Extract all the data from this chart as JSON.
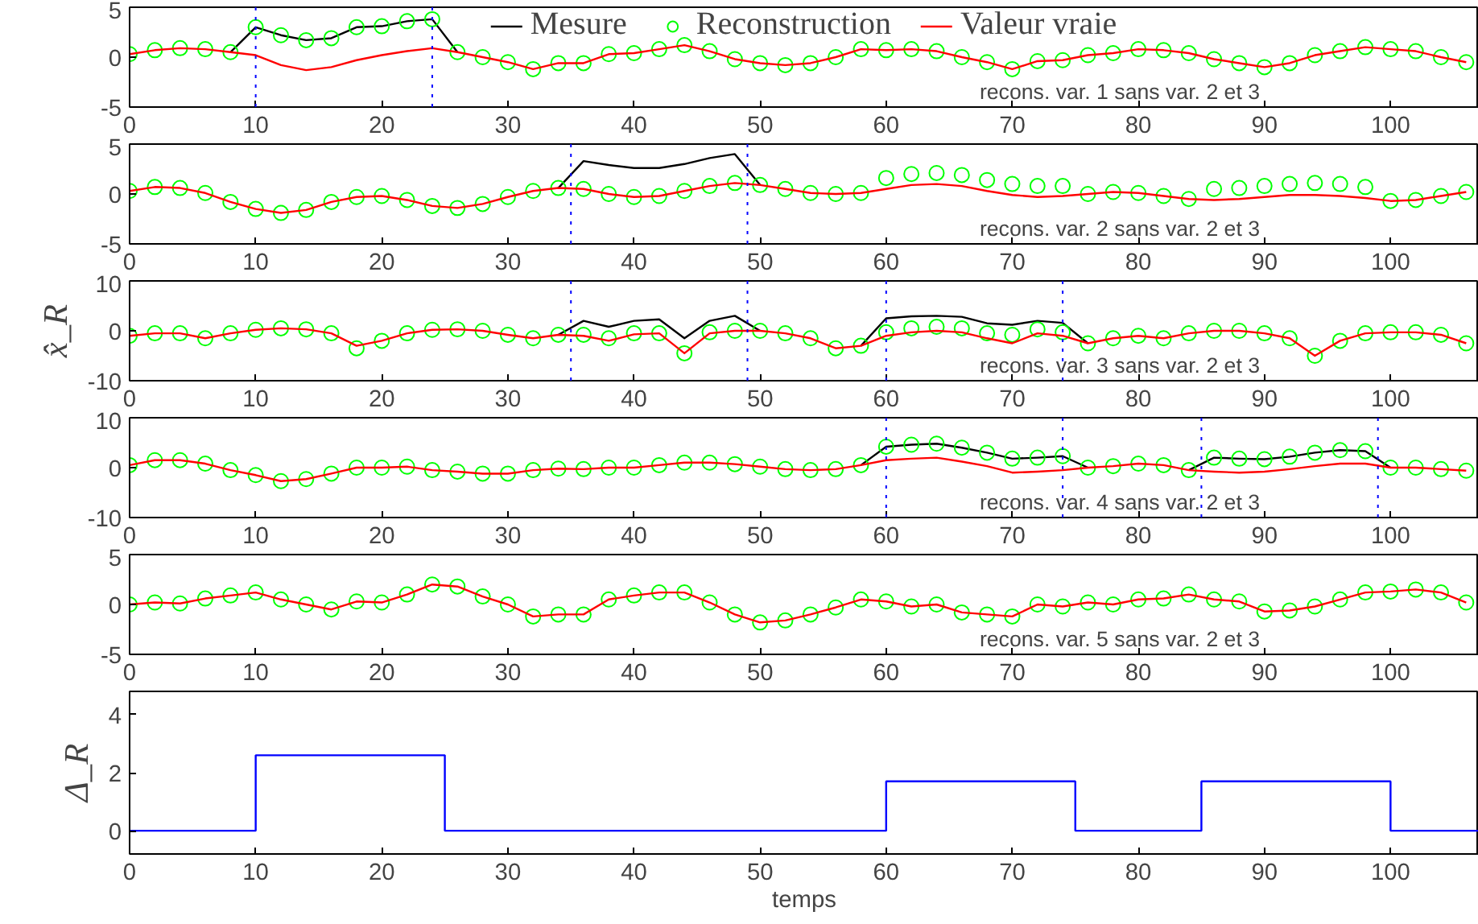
{
  "chart_data": [
    {
      "type": "line",
      "x": [
        0,
        2,
        4,
        6,
        8,
        10,
        12,
        14,
        16,
        18,
        20,
        22,
        24,
        26,
        28,
        30,
        32,
        34,
        36,
        38,
        40,
        42,
        44,
        46,
        48,
        50,
        52,
        54,
        56,
        58,
        60,
        62,
        64,
        66,
        68,
        70,
        72,
        74,
        76,
        78,
        80,
        82,
        84,
        86,
        88,
        90,
        92,
        94,
        96,
        98,
        100,
        102,
        104,
        106
      ],
      "xlim": [
        0,
        107
      ],
      "xticks": [
        0,
        10,
        20,
        30,
        40,
        50,
        60,
        70,
        80,
        90,
        100
      ],
      "ylim": [
        -5,
        5
      ],
      "yticks": [
        -5,
        0,
        5
      ],
      "legend": "top",
      "annotations": [
        "recons. var.  1  sans var. 2 et 3"
      ],
      "ref_lines": [
        {
          "axis": "x",
          "value": 10,
          "color": "#0000ff",
          "line_style": "dotted"
        },
        {
          "axis": "x",
          "value": 24,
          "color": "#0000ff",
          "line_style": "dotted"
        }
      ],
      "series": [
        {
          "name": "Mesure",
          "type": "line",
          "color": "#000000",
          "values": [
            null,
            null,
            null,
            null,
            0.5,
            3.0,
            2.2,
            1.7,
            1.9,
            3.0,
            3.1,
            3.6,
            3.8,
            0.5,
            null,
            null,
            null,
            null,
            null,
            null,
            null,
            null,
            null,
            null,
            null,
            null,
            null,
            null,
            null,
            null,
            null,
            null,
            null,
            null,
            null,
            null,
            null,
            null,
            null,
            null,
            null,
            null,
            null,
            null,
            null,
            null,
            null,
            null,
            null,
            null,
            null,
            null,
            null,
            null
          ]
        },
        {
          "name": "Reconstruction",
          "type": "scatter",
          "marker": "circle",
          "color": "#00ff00",
          "values": [
            0.3,
            0.7,
            0.9,
            0.8,
            0.5,
            3.0,
            2.2,
            1.7,
            1.9,
            3.0,
            3.1,
            3.6,
            3.8,
            0.5,
            0.0,
            -0.5,
            -1.2,
            -0.6,
            -0.6,
            0.3,
            0.4,
            0.8,
            1.2,
            0.6,
            -0.2,
            -0.6,
            -0.8,
            -0.6,
            0.0,
            0.8,
            0.7,
            0.8,
            0.6,
            0.0,
            -0.5,
            -1.2,
            -0.4,
            -0.3,
            0.2,
            0.4,
            0.8,
            0.7,
            0.4,
            -0.2,
            -0.6,
            -1.0,
            -0.6,
            0.2,
            0.6,
            1.0,
            0.8,
            0.6,
            0.0,
            -0.5
          ]
        },
        {
          "name": "Valeur vraie",
          "type": "line",
          "color": "#ff0000",
          "values": [
            0.3,
            0.7,
            0.9,
            0.8,
            0.5,
            0.2,
            -0.8,
            -1.3,
            -1.0,
            -0.3,
            0.2,
            0.6,
            0.9,
            0.5,
            0.0,
            -0.5,
            -1.2,
            -0.6,
            -0.6,
            0.3,
            0.4,
            0.8,
            1.2,
            0.6,
            -0.2,
            -0.6,
            -0.8,
            -0.6,
            0.0,
            0.8,
            0.7,
            0.8,
            0.6,
            0.0,
            -0.5,
            -1.2,
            -0.4,
            -0.3,
            0.2,
            0.4,
            0.8,
            0.7,
            0.4,
            -0.2,
            -0.6,
            -1.0,
            -0.6,
            0.2,
            0.6,
            1.0,
            0.8,
            0.6,
            0.0,
            -0.5
          ]
        }
      ]
    },
    {
      "type": "line",
      "x": [
        0,
        2,
        4,
        6,
        8,
        10,
        12,
        14,
        16,
        18,
        20,
        22,
        24,
        26,
        28,
        30,
        32,
        34,
        36,
        38,
        40,
        42,
        44,
        46,
        48,
        50,
        52,
        54,
        56,
        58,
        60,
        62,
        64,
        66,
        68,
        70,
        72,
        74,
        76,
        78,
        80,
        82,
        84,
        86,
        88,
        90,
        92,
        94,
        96,
        98,
        100,
        102,
        104,
        106
      ],
      "xlim": [
        0,
        107
      ],
      "xticks": [
        0,
        10,
        20,
        30,
        40,
        50,
        60,
        70,
        80,
        90,
        100
      ],
      "ylim": [
        -5,
        5
      ],
      "yticks": [
        -5,
        0,
        5
      ],
      "annotations": [
        "recons. var.  2  sans var. 2 et 3"
      ],
      "ref_lines": [
        {
          "axis": "x",
          "value": 35,
          "color": "#0000ff",
          "line_style": "dotted"
        },
        {
          "axis": "x",
          "value": 49,
          "color": "#0000ff",
          "line_style": "dotted"
        }
      ],
      "series": [
        {
          "type": "line",
          "color": "#000000",
          "values": [
            null,
            null,
            null,
            null,
            null,
            null,
            null,
            null,
            null,
            null,
            null,
            null,
            null,
            null,
            null,
            null,
            null,
            0.6,
            3.3,
            2.9,
            2.6,
            2.6,
            3.0,
            3.6,
            4.0,
            0.9,
            null,
            null,
            null,
            null,
            null,
            null,
            null,
            null,
            null,
            null,
            null,
            null,
            null,
            null,
            null,
            null,
            null,
            null,
            null,
            null,
            null,
            null,
            null,
            null,
            null,
            null,
            null,
            null
          ]
        },
        {
          "type": "scatter",
          "marker": "circle",
          "color": "#00ff00",
          "values": [
            0.3,
            0.7,
            0.6,
            0.1,
            -0.8,
            -1.5,
            -1.9,
            -1.6,
            -0.8,
            -0.3,
            -0.2,
            -0.6,
            -1.2,
            -1.4,
            -1.0,
            -0.3,
            0.3,
            0.6,
            0.5,
            0.0,
            -0.3,
            -0.2,
            0.3,
            0.8,
            1.1,
            0.9,
            0.5,
            0.1,
            0.0,
            0.1,
            1.6,
            2.0,
            2.1,
            1.9,
            1.4,
            1.0,
            0.8,
            0.8,
            0.0,
            0.2,
            0.1,
            -0.2,
            -0.5,
            0.5,
            0.6,
            0.8,
            1.0,
            1.1,
            1.0,
            0.7,
            -0.7,
            -0.6,
            -0.2,
            0.2
          ]
        },
        {
          "type": "line",
          "color": "#ff0000",
          "values": [
            0.3,
            0.7,
            0.6,
            0.1,
            -0.8,
            -1.5,
            -1.9,
            -1.6,
            -0.8,
            -0.3,
            -0.2,
            -0.6,
            -1.2,
            -1.4,
            -1.0,
            -0.3,
            0.3,
            0.6,
            0.5,
            0.0,
            -0.3,
            -0.2,
            0.3,
            0.8,
            1.1,
            0.9,
            0.5,
            0.1,
            0.0,
            0.1,
            0.5,
            0.9,
            1.0,
            0.8,
            0.3,
            -0.1,
            -0.3,
            -0.2,
            0.0,
            0.2,
            0.1,
            -0.2,
            -0.5,
            -0.6,
            -0.5,
            -0.3,
            -0.1,
            -0.1,
            -0.2,
            -0.4,
            -0.7,
            -0.6,
            -0.2,
            0.2
          ]
        }
      ]
    },
    {
      "type": "line",
      "x": [
        0,
        2,
        4,
        6,
        8,
        10,
        12,
        14,
        16,
        18,
        20,
        22,
        24,
        26,
        28,
        30,
        32,
        34,
        36,
        38,
        40,
        42,
        44,
        46,
        48,
        50,
        52,
        54,
        56,
        58,
        60,
        62,
        64,
        66,
        68,
        70,
        72,
        74,
        76,
        78,
        80,
        82,
        84,
        86,
        88,
        90,
        92,
        94,
        96,
        98,
        100,
        102,
        104,
        106
      ],
      "xlim": [
        0,
        107
      ],
      "xticks": [
        0,
        10,
        20,
        30,
        40,
        50,
        60,
        70,
        80,
        90,
        100
      ],
      "ylim": [
        -10,
        10
      ],
      "yticks": [
        -10,
        0,
        10
      ],
      "ylabel": "x̂_R",
      "annotations": [
        "recons. var.  3  sans var. 2 et 3"
      ],
      "ref_lines": [
        {
          "axis": "x",
          "value": 35,
          "color": "#0000ff",
          "line_style": "dotted"
        },
        {
          "axis": "x",
          "value": 49,
          "color": "#0000ff",
          "line_style": "dotted"
        },
        {
          "axis": "x",
          "value": 60,
          "color": "#0000ff",
          "line_style": "dotted"
        },
        {
          "axis": "x",
          "value": 74,
          "color": "#0000ff",
          "line_style": "dotted"
        }
      ],
      "series": [
        {
          "type": "line",
          "color": "#000000",
          "values": [
            null,
            null,
            null,
            null,
            null,
            null,
            null,
            null,
            null,
            null,
            null,
            null,
            null,
            null,
            null,
            null,
            null,
            -0.8,
            2.0,
            0.8,
            2.0,
            2.3,
            -1.5,
            2.0,
            3.0,
            0.0,
            null,
            null,
            null,
            -3.0,
            2.5,
            2.9,
            3.0,
            2.8,
            1.5,
            1.2,
            2.0,
            1.6,
            -2.5,
            null,
            null,
            null,
            null,
            null,
            null,
            null,
            null,
            null,
            null,
            null,
            null,
            null,
            null,
            null
          ]
        },
        {
          "type": "scatter",
          "marker": "circle",
          "color": "#00ff00",
          "values": [
            -1.0,
            -0.5,
            -0.5,
            -1.5,
            -0.5,
            0.2,
            0.5,
            0.3,
            -0.5,
            -3.5,
            -2.0,
            -0.5,
            0.2,
            0.3,
            0.0,
            -0.8,
            -1.5,
            -0.8,
            -0.8,
            -1.5,
            -0.5,
            -0.5,
            -4.5,
            -0.3,
            0.0,
            0.0,
            -0.5,
            -1.5,
            -3.5,
            -3.0,
            -0.3,
            0.5,
            0.8,
            0.5,
            -0.5,
            -0.8,
            0.3,
            -0.3,
            -2.5,
            -1.5,
            -1.0,
            -1.5,
            -0.5,
            0.0,
            0.0,
            -0.5,
            -1.5,
            -5.0,
            -2.0,
            -0.5,
            -0.3,
            -0.3,
            -0.8,
            -2.5
          ]
        },
        {
          "type": "line",
          "color": "#ff0000",
          "values": [
            -1.0,
            -0.5,
            -0.5,
            -1.5,
            -0.5,
            0.2,
            0.5,
            0.3,
            -0.5,
            -3.0,
            -2.0,
            -0.5,
            0.2,
            0.3,
            0.0,
            -0.8,
            -1.5,
            -0.8,
            -1.0,
            -2.0,
            -0.7,
            -0.5,
            -4.5,
            -0.5,
            0.0,
            0.0,
            -0.5,
            -1.5,
            -3.5,
            -3.0,
            -1.0,
            -0.3,
            0.0,
            -0.3,
            -1.5,
            -2.5,
            -0.5,
            -1.0,
            -2.5,
            -1.5,
            -1.0,
            -1.5,
            -0.5,
            0.0,
            0.0,
            -0.5,
            -1.5,
            -5.0,
            -2.0,
            -0.5,
            -0.3,
            -0.3,
            -0.8,
            -2.5
          ]
        }
      ]
    },
    {
      "type": "line",
      "x": [
        0,
        2,
        4,
        6,
        8,
        10,
        12,
        14,
        16,
        18,
        20,
        22,
        24,
        26,
        28,
        30,
        32,
        34,
        36,
        38,
        40,
        42,
        44,
        46,
        48,
        50,
        52,
        54,
        56,
        58,
        60,
        62,
        64,
        66,
        68,
        70,
        72,
        74,
        76,
        78,
        80,
        82,
        84,
        86,
        88,
        90,
        92,
        94,
        96,
        98,
        100,
        102,
        104,
        106
      ],
      "xlim": [
        0,
        107
      ],
      "xticks": [
        0,
        10,
        20,
        30,
        40,
        50,
        60,
        70,
        80,
        90,
        100
      ],
      "ylim": [
        -10,
        10
      ],
      "yticks": [
        -10,
        0,
        10
      ],
      "annotations": [
        "recons. var.  4  sans var. 2 et 3"
      ],
      "ref_lines": [
        {
          "axis": "x",
          "value": 60,
          "color": "#0000ff",
          "line_style": "dotted"
        },
        {
          "axis": "x",
          "value": 74,
          "color": "#0000ff",
          "line_style": "dotted"
        },
        {
          "axis": "x",
          "value": 85,
          "color": "#0000ff",
          "line_style": "dotted"
        },
        {
          "axis": "x",
          "value": 99,
          "color": "#0000ff",
          "line_style": "dotted"
        }
      ],
      "series": [
        {
          "type": "line",
          "color": "#000000",
          "values": [
            null,
            null,
            null,
            null,
            null,
            null,
            null,
            null,
            null,
            null,
            null,
            null,
            null,
            null,
            null,
            null,
            null,
            null,
            null,
            null,
            null,
            null,
            null,
            null,
            null,
            null,
            null,
            null,
            null,
            0.5,
            4.2,
            4.6,
            4.8,
            4.0,
            3.0,
            1.8,
            2.0,
            2.3,
            0.0,
            null,
            null,
            null,
            -0.5,
            2.0,
            1.8,
            1.7,
            2.2,
            3.0,
            3.5,
            3.3,
            0.0,
            null,
            null,
            null
          ]
        },
        {
          "type": "scatter",
          "marker": "circle",
          "color": "#00ff00",
          "values": [
            0.5,
            1.5,
            1.5,
            0.8,
            -0.5,
            -1.5,
            -2.7,
            -2.3,
            -1.2,
            0.0,
            0.0,
            0.2,
            -0.5,
            -0.8,
            -1.2,
            -1.2,
            -0.5,
            -0.2,
            -0.3,
            0.0,
            0.0,
            0.5,
            1.0,
            1.0,
            0.7,
            0.2,
            -0.3,
            -0.5,
            -0.3,
            0.5,
            4.2,
            4.6,
            4.8,
            4.0,
            3.0,
            1.8,
            2.0,
            2.3,
            0.0,
            0.3,
            0.8,
            0.5,
            -0.5,
            2.0,
            1.8,
            1.7,
            2.2,
            3.0,
            3.5,
            3.3,
            0.0,
            0.0,
            -0.3,
            -0.6
          ]
        },
        {
          "type": "line",
          "color": "#ff0000",
          "values": [
            0.5,
            1.5,
            1.5,
            0.8,
            -0.5,
            -1.5,
            -2.7,
            -2.3,
            -1.2,
            0.0,
            0.0,
            0.2,
            -0.5,
            -0.8,
            -1.2,
            -1.2,
            -0.5,
            -0.2,
            -0.3,
            0.0,
            0.0,
            0.5,
            1.0,
            1.0,
            0.7,
            0.2,
            -0.3,
            -0.5,
            -0.3,
            0.5,
            1.5,
            1.8,
            2.0,
            1.2,
            0.3,
            -1.0,
            -0.8,
            -0.5,
            0.0,
            0.3,
            0.8,
            0.5,
            -0.5,
            -0.8,
            -1.0,
            -0.8,
            -0.3,
            0.3,
            0.8,
            0.8,
            0.0,
            0.0,
            -0.3,
            -0.6
          ]
        }
      ]
    },
    {
      "type": "line",
      "x": [
        0,
        2,
        4,
        6,
        8,
        10,
        12,
        14,
        16,
        18,
        20,
        22,
        24,
        26,
        28,
        30,
        32,
        34,
        36,
        38,
        40,
        42,
        44,
        46,
        48,
        50,
        52,
        54,
        56,
        58,
        60,
        62,
        64,
        66,
        68,
        70,
        72,
        74,
        76,
        78,
        80,
        82,
        84,
        86,
        88,
        90,
        92,
        94,
        96,
        98,
        100,
        102,
        104,
        106
      ],
      "xlim": [
        0,
        107
      ],
      "xticks": [
        0,
        10,
        20,
        30,
        40,
        50,
        60,
        70,
        80,
        90,
        100
      ],
      "ylim": [
        -5,
        5
      ],
      "yticks": [
        -5,
        0,
        5
      ],
      "annotations": [
        "recons. var.  5  sans var. 2 et 3"
      ],
      "series": [
        {
          "type": "scatter",
          "marker": "circle",
          "color": "#00ff00",
          "values": [
            0.0,
            0.2,
            0.1,
            0.6,
            0.9,
            1.2,
            0.5,
            0.0,
            -0.5,
            0.3,
            0.2,
            1.0,
            2.0,
            1.8,
            0.8,
            0.0,
            -1.2,
            -1.0,
            -1.0,
            0.5,
            0.9,
            1.2,
            1.2,
            0.2,
            -1.0,
            -1.8,
            -1.6,
            -1.0,
            -0.3,
            0.5,
            0.3,
            -0.2,
            0.0,
            -0.8,
            -1.0,
            -1.2,
            0.0,
            -0.2,
            0.2,
            0.0,
            0.5,
            0.6,
            1.0,
            0.5,
            0.3,
            -0.7,
            -0.6,
            -0.2,
            0.5,
            1.2,
            1.3,
            1.5,
            1.2,
            0.2
          ]
        },
        {
          "type": "line",
          "color": "#ff0000",
          "values": [
            0.0,
            0.2,
            0.1,
            0.6,
            0.9,
            1.2,
            0.5,
            0.0,
            -0.5,
            0.3,
            0.2,
            1.0,
            2.0,
            1.8,
            0.8,
            0.0,
            -1.2,
            -1.0,
            -1.0,
            0.5,
            0.9,
            1.2,
            1.2,
            0.2,
            -1.0,
            -1.8,
            -1.6,
            -1.0,
            -0.3,
            0.5,
            0.3,
            -0.2,
            0.0,
            -0.8,
            -1.0,
            -1.2,
            0.0,
            -0.2,
            0.2,
            0.0,
            0.5,
            0.6,
            1.0,
            0.5,
            0.3,
            -0.7,
            -0.6,
            -0.2,
            0.5,
            1.2,
            1.3,
            1.5,
            1.2,
            0.2
          ]
        }
      ]
    },
    {
      "type": "step",
      "x": [
        0,
        10,
        25,
        60,
        75,
        85,
        100,
        107
      ],
      "xlim": [
        0,
        107
      ],
      "xticks": [
        0,
        10,
        20,
        30,
        40,
        50,
        60,
        70,
        80,
        90,
        100
      ],
      "ylim": [
        -0.8,
        4.8
      ],
      "yticks": [
        0,
        2,
        4
      ],
      "ylabel": "Δ_R",
      "xlabel": "temps",
      "series": [
        {
          "color": "#0000ff",
          "values": [
            0,
            2.6,
            0,
            1.7,
            0,
            1.7,
            0,
            0
          ]
        }
      ]
    }
  ]
}
